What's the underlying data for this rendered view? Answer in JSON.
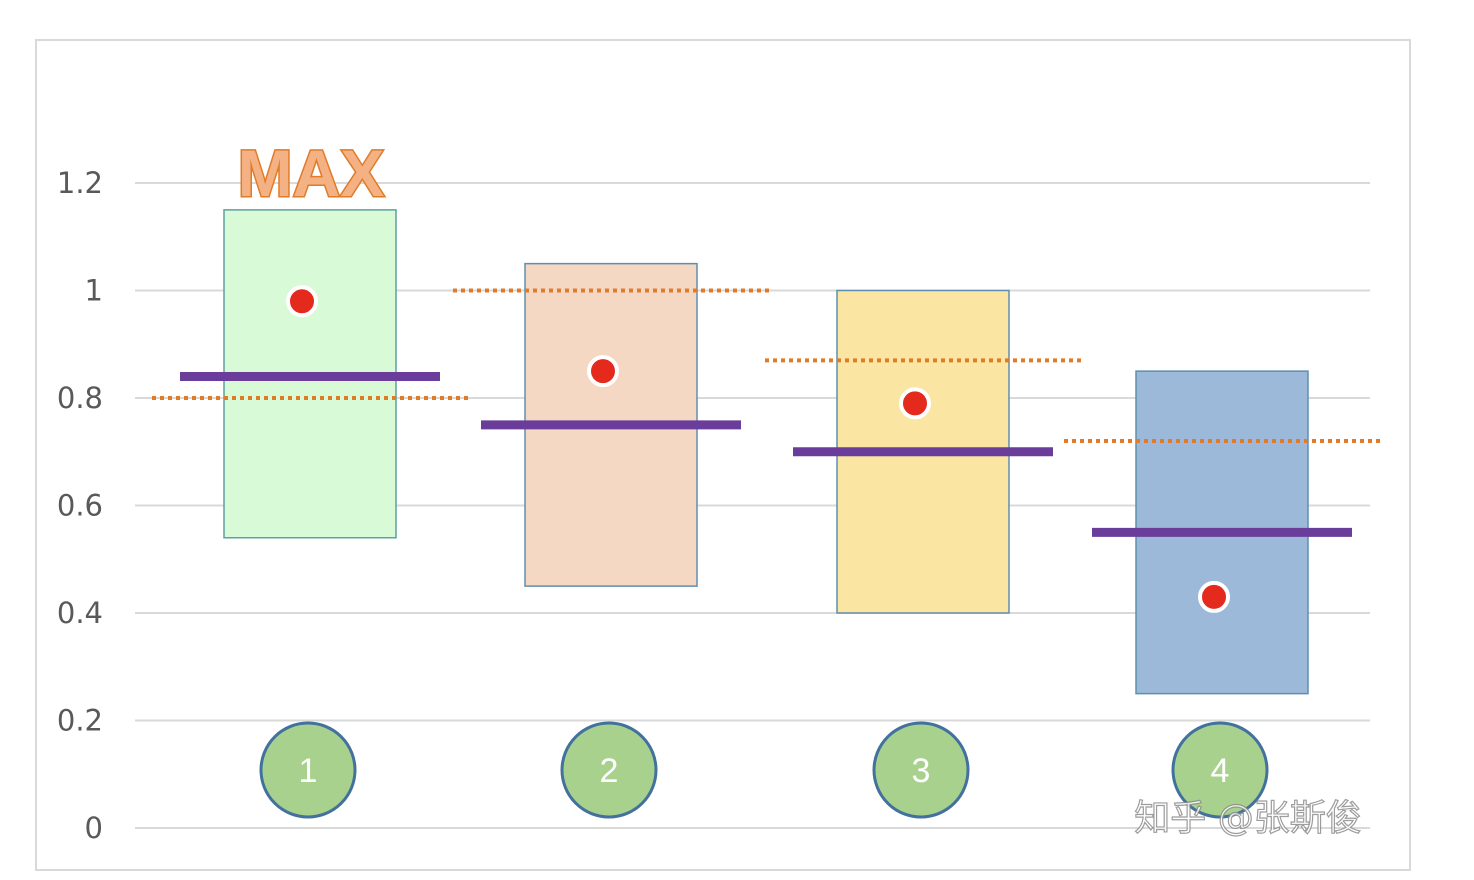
{
  "chart_data": {
    "type": "bar",
    "categories": [
      "1",
      "2",
      "3",
      "4"
    ],
    "range_boxes": [
      {
        "category": "1",
        "low": 0.54,
        "high": 1.15,
        "color": "#d9fad6",
        "border": "#5fa0a0"
      },
      {
        "category": "2",
        "low": 0.45,
        "high": 1.05,
        "color": "#f4d8c3",
        "border": "#5f8fb0"
      },
      {
        "category": "3",
        "low": 0.4,
        "high": 1.0,
        "color": "#fbe5a2",
        "border": "#5f8fb0"
      },
      {
        "category": "4",
        "low": 0.25,
        "high": 0.85,
        "color": "#9db9d9",
        "border": "#5f8fb0"
      }
    ],
    "points": [
      0.98,
      0.85,
      0.79,
      0.43
    ],
    "solid_lines": [
      0.84,
      0.75,
      0.7,
      0.55
    ],
    "dotted_lines": [
      0.8,
      1.0,
      0.87,
      0.72
    ],
    "ylim": [
      0,
      1.2
    ],
    "yticks": [
      "0",
      "0.2",
      "0.4",
      "0.6",
      "0.8",
      "1",
      "1.2"
    ],
    "grid": true,
    "annotations": [
      "MAX"
    ],
    "watermark": "知乎 @张斯俊"
  },
  "colors": {
    "point": "#e4291d",
    "solid_line": "#6a3d9a",
    "dotted_line": "#e07b28",
    "grid": "#d9d9d9",
    "badge_fill": "#a9d18e",
    "badge_border": "#41719c"
  }
}
